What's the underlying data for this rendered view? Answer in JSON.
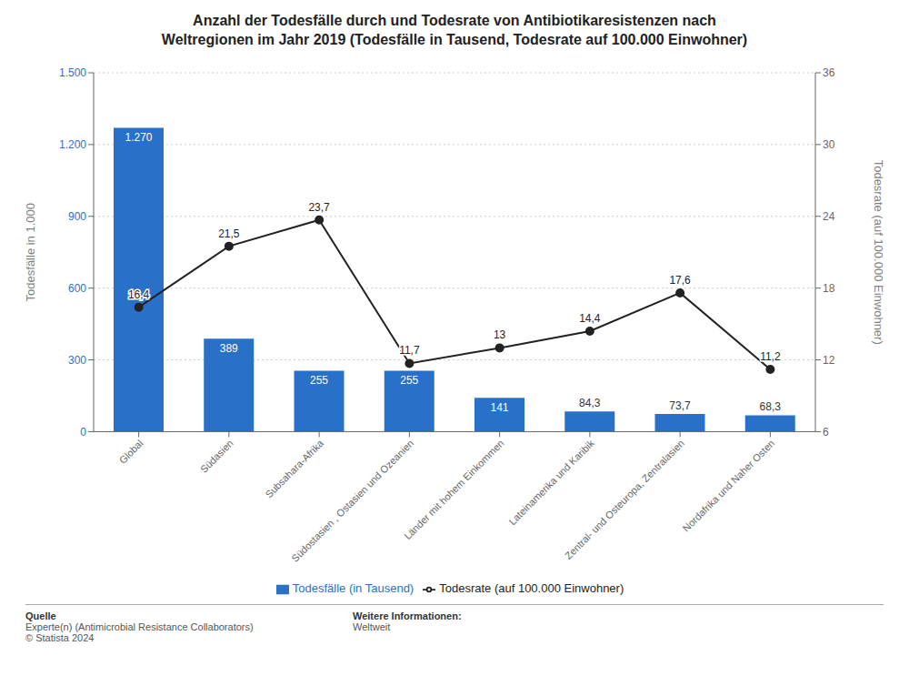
{
  "chart_data": {
    "type": "bar",
    "title": "Anzahl der Todesfälle durch und Todesrate von Antibiotikaresistenzen nach\nWeltregionen im Jahr 2019 (Todesfälle in Tausend, Todesrate auf 100.000 Einwohner)",
    "categories": [
      "Global",
      "Südasien",
      "Subsahara-Afrika",
      "Südostasien , Ostasien und Ozeanien",
      "Länder mit hohem Einkommen",
      "Lateinamerika und Karibik",
      "Zentral- und Osteuropa, Zentralasien",
      "Nordafrika und Naher Osten"
    ],
    "series": [
      {
        "name": "Todesfälle (in Tausend)",
        "type": "bar",
        "color": "#2970c8",
        "values": [
          1270,
          389,
          255,
          255,
          141,
          84.3,
          73.7,
          68.3
        ],
        "value_labels": [
          "1.270",
          "389",
          "255",
          "255",
          "141",
          "84,3",
          "73,7",
          "68,3"
        ]
      },
      {
        "name": "Todesrate (auf 100.000 Einwohner)",
        "type": "line",
        "color": "#222222",
        "marker": "circle",
        "axis": "y2",
        "values": [
          16.4,
          21.5,
          23.7,
          11.7,
          13.0,
          14.4,
          17.6,
          11.2
        ],
        "value_labels": [
          "16,4",
          "21,5",
          "23,7",
          "11,7",
          "13",
          "14,4",
          "17,6",
          "11,2"
        ]
      }
    ],
    "ylabel": "Todesfälle in 1.000",
    "y2label": "Todesrate (auf 100.000 Einwohner)",
    "ylim": [
      0,
      1500
    ],
    "yticks": [
      0,
      300,
      600,
      900,
      {
        "value": 1200,
        "label": "1.200"
      },
      {
        "value": 1500,
        "label": "1.500"
      }
    ],
    "y2lim": [
      6,
      36
    ],
    "y2ticks": [
      6,
      12,
      18,
      24,
      30,
      36
    ],
    "grid": true,
    "legend": "bottom",
    "data_labels": true,
    "annotations": [
      "Quelle",
      "Experte(n) (Antimicrobial Resistance Collaborators)\n© Statista 2024",
      "Weitere Informationen:",
      "Weltweit"
    ]
  }
}
